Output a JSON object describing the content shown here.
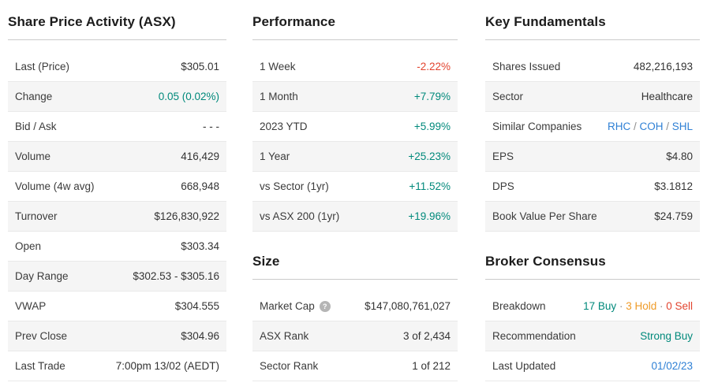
{
  "colors": {
    "positive": "#00897b",
    "negative": "#e2442f",
    "hold": "#ef9b28",
    "link": "#2f80d5"
  },
  "icons": {
    "help_glyph": "?"
  },
  "sections": {
    "share_price": {
      "title": "Share Price Activity (ASX)",
      "rows": [
        {
          "label": "Last (Price)",
          "parts": [
            {
              "text": "$305.01"
            }
          ]
        },
        {
          "label": "Change",
          "parts": [
            {
              "text": "0.05 (0.02%)",
              "style": "positive",
              "name": "change-value"
            }
          ]
        },
        {
          "label": "Bid / Ask",
          "parts": [
            {
              "text": "- - -"
            }
          ]
        },
        {
          "label": "Volume",
          "parts": [
            {
              "text": "416,429"
            }
          ]
        },
        {
          "label": "Volume (4w avg)",
          "parts": [
            {
              "text": "668,948"
            }
          ]
        },
        {
          "label": "Turnover",
          "parts": [
            {
              "text": "$126,830,922"
            }
          ]
        },
        {
          "label": "Open",
          "parts": [
            {
              "text": "$303.34"
            }
          ]
        },
        {
          "label": "Day Range",
          "parts": [
            {
              "text": "$302.53 - $305.16"
            }
          ]
        },
        {
          "label": "VWAP",
          "parts": [
            {
              "text": "$304.555"
            }
          ]
        },
        {
          "label": "Prev Close",
          "parts": [
            {
              "text": "$304.96"
            }
          ]
        },
        {
          "label": "Last Trade",
          "parts": [
            {
              "text": "7:00pm 13/02 (AEDT)"
            }
          ]
        }
      ]
    },
    "performance": {
      "title": "Performance",
      "rows": [
        {
          "label": "1 Week",
          "parts": [
            {
              "text": "-2.22%",
              "style": "negative"
            }
          ]
        },
        {
          "label": "1 Month",
          "parts": [
            {
              "text": "+7.79%",
              "style": "positive"
            }
          ]
        },
        {
          "label": "2023 YTD",
          "parts": [
            {
              "text": "+5.99%",
              "style": "positive"
            }
          ]
        },
        {
          "label": "1 Year",
          "parts": [
            {
              "text": "+25.23%",
              "style": "positive"
            }
          ]
        },
        {
          "label": "vs Sector (1yr)",
          "parts": [
            {
              "text": "+11.52%",
              "style": "positive"
            }
          ]
        },
        {
          "label": "vs ASX 200 (1yr)",
          "parts": [
            {
              "text": "+19.96%",
              "style": "positive"
            }
          ]
        }
      ]
    },
    "size": {
      "title": "Size",
      "rows": [
        {
          "label": "Market Cap",
          "help_icon": true,
          "parts": [
            {
              "text": "$147,080,761,027"
            }
          ]
        },
        {
          "label": "ASX Rank",
          "parts": [
            {
              "text": "3 of 2,434"
            }
          ]
        },
        {
          "label": "Sector Rank",
          "parts": [
            {
              "text": "1 of 212"
            }
          ]
        }
      ]
    },
    "fundamentals": {
      "title": "Key Fundamentals",
      "rows": [
        {
          "label": "Shares Issued",
          "parts": [
            {
              "text": "482,216,193"
            }
          ]
        },
        {
          "label": "Sector",
          "parts": [
            {
              "text": "Healthcare"
            }
          ]
        },
        {
          "label": "Similar Companies",
          "parts": [
            {
              "text": "RHC",
              "style": "link",
              "link": true,
              "name": "similar-company-link-rhc"
            },
            {
              "text": " / ",
              "style": "sep"
            },
            {
              "text": "COH",
              "style": "link",
              "link": true,
              "name": "similar-company-link-coh"
            },
            {
              "text": " / ",
              "style": "sep"
            },
            {
              "text": "SHL",
              "style": "link",
              "link": true,
              "name": "similar-company-link-shl"
            }
          ]
        },
        {
          "label": "EPS",
          "parts": [
            {
              "text": "$4.80"
            }
          ]
        },
        {
          "label": "DPS",
          "parts": [
            {
              "text": "$3.1812"
            }
          ]
        },
        {
          "label": "Book Value Per Share",
          "parts": [
            {
              "text": "$24.759"
            }
          ]
        }
      ]
    },
    "broker": {
      "title": "Broker Consensus",
      "rows": [
        {
          "label": "Breakdown",
          "parts": [
            {
              "text": "17 Buy",
              "style": "positive",
              "name": "buy-count"
            },
            {
              "text": " · ",
              "style": "sep"
            },
            {
              "text": "3 Hold",
              "style": "hold",
              "name": "hold-count"
            },
            {
              "text": " · ",
              "style": "sep"
            },
            {
              "text": "0 Sell",
              "style": "negative",
              "name": "sell-count"
            }
          ]
        },
        {
          "label": "Recommendation",
          "parts": [
            {
              "text": "Strong Buy",
              "style": "positive",
              "name": "recommendation-value"
            }
          ]
        },
        {
          "label": "Last Updated",
          "parts": [
            {
              "text": "01/02/23",
              "style": "link",
              "link": true,
              "name": "last-updated-link"
            }
          ]
        }
      ]
    }
  }
}
